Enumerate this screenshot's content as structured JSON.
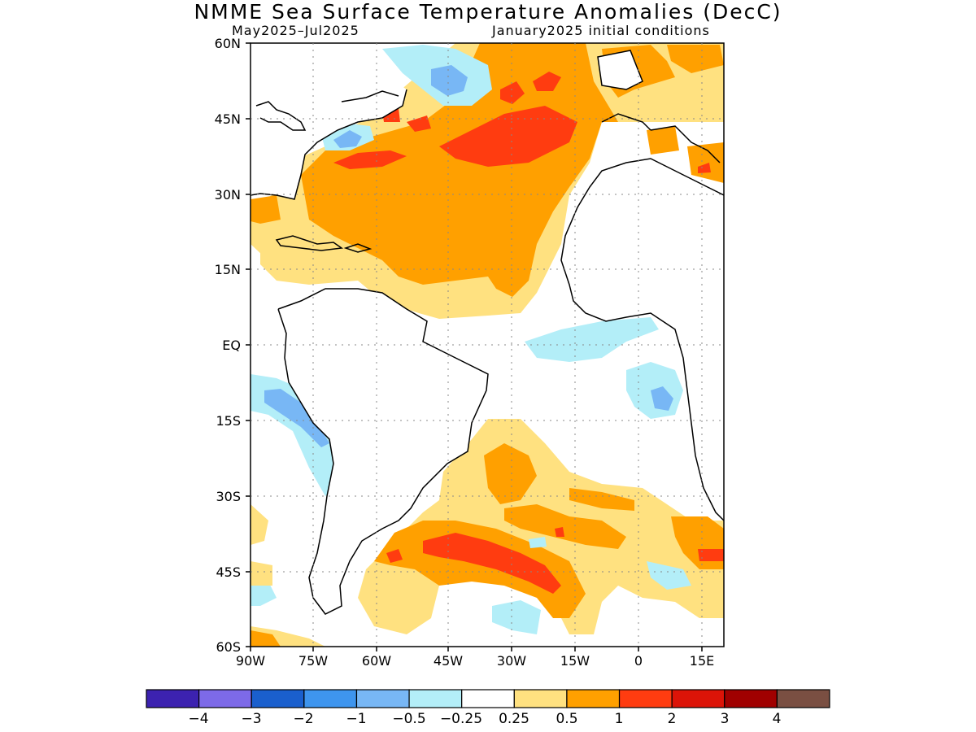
{
  "title": "NMME Sea Surface Temperature Anomalies (DecC)",
  "subtitle_left": "May2025–Jul2025",
  "subtitle_right": "January2025 initial conditions",
  "lat_labels": [
    "60N",
    "45N",
    "30N",
    "15N",
    "EQ",
    "15S",
    "30S",
    "45S",
    "60S"
  ],
  "lon_labels": [
    "90W",
    "75W",
    "60W",
    "45W",
    "30W",
    "15W",
    "0",
    "15E"
  ],
  "colorbar": {
    "colors": [
      "#3c22b0",
      "#7d6ae8",
      "#1a5fcd",
      "#3e95ee",
      "#78b7f5",
      "#b3eef8",
      "#ffffff",
      "#ffe180",
      "#ffa000",
      "#ff3c10",
      "#dc1408",
      "#a00000",
      "#7a4f42"
    ],
    "labels": [
      "−4",
      "−3",
      "−2",
      "−1",
      "−0.5",
      "−0.25",
      "0.25",
      "0.5",
      "1",
      "2",
      "3",
      "4"
    ]
  }
}
